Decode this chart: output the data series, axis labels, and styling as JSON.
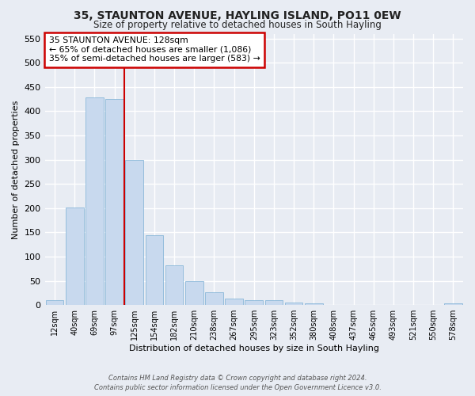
{
  "title": "35, STAUNTON AVENUE, HAYLING ISLAND, PO11 0EW",
  "subtitle": "Size of property relative to detached houses in South Hayling",
  "xlabel": "Distribution of detached houses by size in South Hayling",
  "ylabel": "Number of detached properties",
  "bar_color": "#c8d9ee",
  "bar_edge_color": "#7bafd4",
  "background_color": "#e8ecf3",
  "grid_color": "#ffffff",
  "categories": [
    "12sqm",
    "40sqm",
    "69sqm",
    "97sqm",
    "125sqm",
    "154sqm",
    "182sqm",
    "210sqm",
    "238sqm",
    "267sqm",
    "295sqm",
    "323sqm",
    "352sqm",
    "380sqm",
    "408sqm",
    "437sqm",
    "465sqm",
    "493sqm",
    "521sqm",
    "550sqm",
    "578sqm"
  ],
  "bar_heights": [
    10,
    202,
    428,
    425,
    300,
    144,
    82,
    50,
    26,
    13,
    10,
    10,
    6,
    3,
    0,
    0,
    0,
    0,
    0,
    0,
    3
  ],
  "vline_color": "#cc0000",
  "annotation_title": "35 STAUNTON AVENUE: 128sqm",
  "annotation_line1": "← 65% of detached houses are smaller (1,086)",
  "annotation_line2": "35% of semi-detached houses are larger (583) →",
  "annotation_box_color": "#ffffff",
  "annotation_box_edge_color": "#cc0000",
  "ylim": [
    0,
    560
  ],
  "yticks": [
    0,
    50,
    100,
    150,
    200,
    250,
    300,
    350,
    400,
    450,
    500,
    550
  ],
  "footer_line1": "Contains HM Land Registry data © Crown copyright and database right 2024.",
  "footer_line2": "Contains public sector information licensed under the Open Government Licence v3.0."
}
